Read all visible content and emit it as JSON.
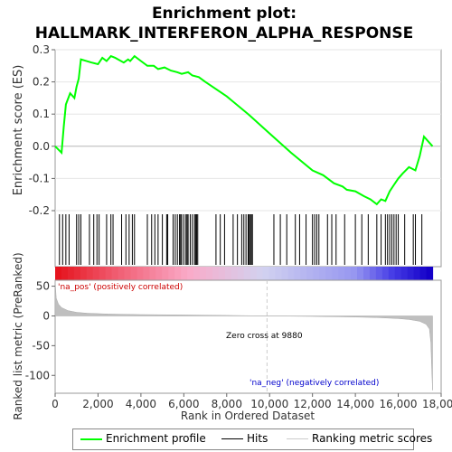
{
  "chart_data": {
    "type": "line",
    "title_line1": "Enrichment plot:",
    "title_line2": "HALLMARK_INTERFERON_ALPHA_RESPONSE",
    "es_ylabel": "Enrichment score (ES)",
    "metric_ylabel_line1": "Ranked list metric (PreRanked)",
    "xlabel": "Rank in Ordered Dataset",
    "x_range": [
      0,
      17600
    ],
    "xlim": [
      0,
      18000
    ],
    "es_ylim": [
      -0.2,
      0.3
    ],
    "metric_ylim": [
      -130,
      60
    ],
    "x_ticks": [
      "0",
      "2,000",
      "4,000",
      "6,000",
      "8,000",
      "10,000",
      "12,000",
      "14,000",
      "16,000",
      "18,000"
    ],
    "x_tick_values": [
      0,
      2000,
      4000,
      6000,
      8000,
      10000,
      12000,
      14000,
      16000,
      18000
    ],
    "es_ticks": [
      "0.3",
      "0.2",
      "0.1",
      "0.0",
      "-0.1",
      "-0.2"
    ],
    "es_tick_values": [
      0.3,
      0.2,
      0.1,
      0.0,
      -0.1,
      -0.2
    ],
    "metric_ticks": [
      "50",
      "0",
      "-50",
      "-100"
    ],
    "metric_tick_values": [
      50,
      0,
      -50,
      -100
    ],
    "zero_cross_label": "Zero cross at 9880",
    "zero_cross": 9880,
    "pos_label": "'na_pos' (positively correlated)",
    "neg_label": "'na_neg' (negatively correlated)",
    "es_curve": {
      "x": [
        0,
        300,
        400,
        500,
        700,
        900,
        1000,
        1100,
        1200,
        1700,
        2000,
        2200,
        2400,
        2600,
        2800,
        3200,
        3400,
        3500,
        3700,
        4000,
        4300,
        4600,
        4800,
        5100,
        5400,
        5700,
        5900,
        6200,
        6400,
        6700,
        7000,
        8000,
        9000,
        10000,
        11000,
        12000,
        12500,
        13000,
        13400,
        13600,
        14000,
        14400,
        14700,
        15000,
        15200,
        15400,
        15600,
        15800,
        16000,
        16200,
        16500,
        16800,
        17000,
        17200,
        17600
      ],
      "y": [
        0.0,
        -0.02,
        0.06,
        0.13,
        0.165,
        0.15,
        0.185,
        0.21,
        0.27,
        0.26,
        0.255,
        0.275,
        0.265,
        0.28,
        0.275,
        0.26,
        0.27,
        0.265,
        0.28,
        0.265,
        0.25,
        0.25,
        0.24,
        0.245,
        0.235,
        0.23,
        0.225,
        0.23,
        0.22,
        0.215,
        0.2,
        0.155,
        0.1,
        0.04,
        -0.02,
        -0.075,
        -0.09,
        -0.115,
        -0.125,
        -0.135,
        -0.14,
        -0.155,
        -0.165,
        -0.18,
        -0.165,
        -0.17,
        -0.14,
        -0.12,
        -0.1,
        -0.085,
        -0.065,
        -0.075,
        -0.03,
        0.03,
        0.0
      ]
    },
    "hits": [
      200,
      350,
      500,
      650,
      1000,
      1100,
      1200,
      1600,
      1800,
      1950,
      2050,
      2400,
      2600,
      2700,
      3100,
      3300,
      3450,
      3600,
      3700,
      4300,
      4500,
      4650,
      4800,
      5000,
      5200,
      5250,
      5500,
      5600,
      5700,
      5800,
      5850,
      5900,
      6000,
      6100,
      6150,
      6200,
      6300,
      6400,
      6500,
      6550,
      6600,
      6650,
      7500,
      7700,
      7900,
      8300,
      8500,
      8700,
      8800,
      8900,
      9000,
      9050,
      9100,
      9150,
      9200,
      10200,
      10500,
      10800,
      11200,
      11400,
      11700,
      12000,
      12100,
      12200,
      12300,
      12700,
      12900,
      13100,
      13500,
      14000,
      14300,
      14600,
      15000,
      15200,
      15400,
      15500,
      15600,
      15700,
      15800,
      15900,
      16000,
      16300,
      16700,
      16800,
      17100
    ],
    "metric_profile": {
      "x": [
        0,
        50,
        150,
        300,
        600,
        1000,
        1500,
        2500,
        4000,
        6000,
        8000,
        9880,
        12000,
        14000,
        15000,
        16000,
        16500,
        17000,
        17300,
        17450,
        17520,
        17560,
        17600
      ],
      "y": [
        60,
        30,
        20,
        14,
        9,
        6,
        4.5,
        3.2,
        2.3,
        1.6,
        0.8,
        0,
        -0.8,
        -1.8,
        -2.8,
        -4.5,
        -6,
        -9,
        -14,
        -22,
        -45,
        -90,
        -125
      ]
    },
    "legend": [
      {
        "label": "Enrichment profile",
        "color": "#00ff00"
      },
      {
        "label": "Hits",
        "color": "#000000"
      },
      {
        "label": "Ranking metric scores",
        "color": "#cccccc"
      }
    ],
    "colors": {
      "es_line": "#00ff00",
      "hit": "#000000",
      "metric_fill": "#bfbfbf",
      "pos_text": "#cc0000",
      "neg_text": "#0000cc",
      "zero_line": "#cccccc"
    }
  }
}
